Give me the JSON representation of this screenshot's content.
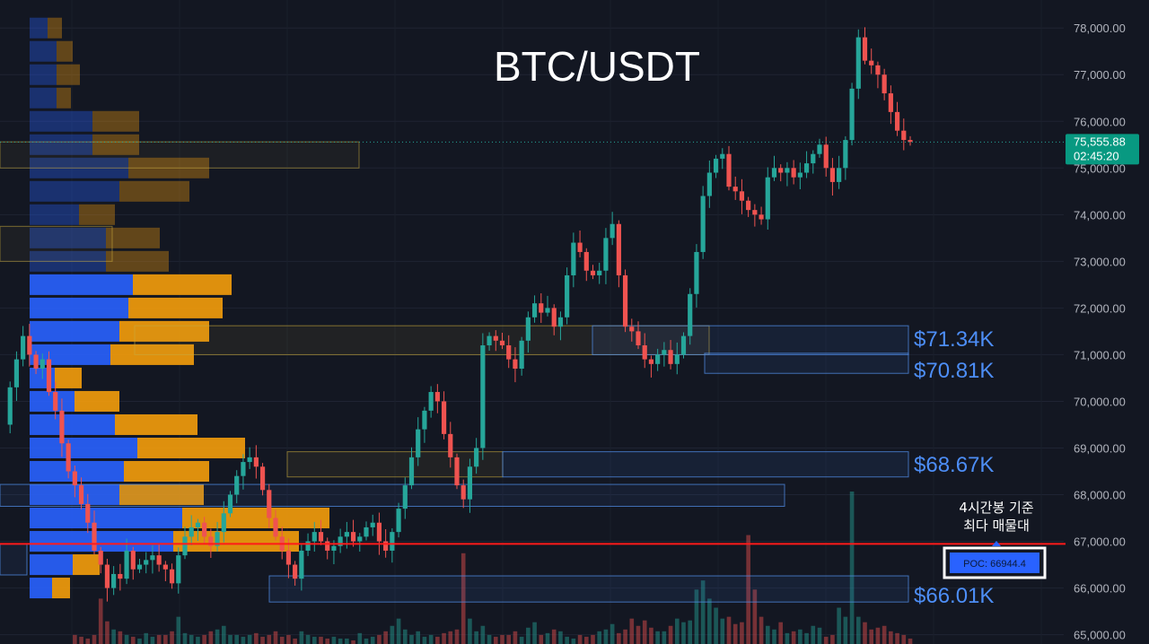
{
  "colors": {
    "background": "#131722",
    "up": "#26a69a",
    "down": "#ef5350",
    "vp_blue": "#2962ff",
    "vp_orange": "#f59d0b",
    "poc_line": "#ff1a1a",
    "level_text": "#4d8ef7",
    "axis_text": "#b2b5be",
    "price_badge": "#089981"
  },
  "chart_data": {
    "type": "candlestick",
    "title": "BTC/USDT",
    "ylim": [
      64800,
      78600
    ],
    "y_ticks": [
      {
        "value": 65000,
        "label": "65,000.00"
      },
      {
        "value": 66000,
        "label": "66,000.00"
      },
      {
        "value": 67000,
        "label": "67,000.00"
      },
      {
        "value": 68000,
        "label": "68,000.00"
      },
      {
        "value": 69000,
        "label": "69,000.00"
      },
      {
        "value": 70000,
        "label": "70,000.00"
      },
      {
        "value": 71000,
        "label": "71,000.00"
      },
      {
        "value": 72000,
        "label": "72,000.00"
      },
      {
        "value": 73000,
        "label": "73,000.00"
      },
      {
        "value": 74000,
        "label": "74,000.00"
      },
      {
        "value": 75000,
        "label": "75,000.00"
      },
      {
        "value": 76000,
        "label": "76,000.00"
      },
      {
        "value": 77000,
        "label": "77,000.00"
      },
      {
        "value": 78000,
        "label": "78,000.00"
      }
    ],
    "current_price": {
      "value": 75555.88,
      "label": "75,555.88",
      "countdown": "02:45:20"
    },
    "poc": {
      "value": 66944.4,
      "label": "POC: 66944.4",
      "annotation_line1": "4시간봉 기준",
      "annotation_line2": "최다 매물대"
    },
    "levels": [
      {
        "value": 71340,
        "label": "$71.34K",
        "zone_low": 71000,
        "zone_high": 71620
      },
      {
        "value": 70810,
        "label": "$70.81K",
        "zone_low": 70600,
        "zone_high": 71030
      },
      {
        "value": 68670,
        "label": "$68.67K",
        "zone_low": 68380,
        "zone_high": 68920
      },
      {
        "value": 66010,
        "label": "$66.01K",
        "zone_low": 65700,
        "zone_high": 66260
      }
    ],
    "prices": [
      69500,
      70300,
      70900,
      71400,
      71000,
      70700,
      70900,
      70200,
      69800,
      69100,
      68500,
      68200,
      67800,
      67400,
      66800,
      66500,
      66000,
      66300,
      66200,
      66800,
      66400,
      66500,
      66600,
      66700,
      66500,
      66400,
      66100,
      66700,
      67100,
      67300,
      67400,
      67100,
      66900,
      67200,
      67600,
      68000,
      68400,
      68700,
      68800,
      68600,
      68100,
      67500,
      67100,
      66800,
      66500,
      66200,
      66800,
      67000,
      67200,
      67000,
      66800,
      66900,
      67100,
      67200,
      67000,
      67100,
      67300,
      67400,
      67000,
      66800,
      67200,
      67700,
      68200,
      68800,
      69400,
      69800,
      70200,
      70000,
      69300,
      68800,
      68200,
      67900,
      68600,
      69000,
      71200,
      71400,
      71300,
      71200,
      70900,
      70700,
      71300,
      71800,
      72100,
      71900,
      72000,
      71600,
      71800,
      72700,
      73400,
      73200,
      72800,
      72700,
      72800,
      73500,
      73800,
      72700,
      71600,
      71500,
      71200,
      70900,
      70800,
      71000,
      71100,
      70800,
      71000,
      71400,
      72300,
      73200,
      74400,
      74900,
      75200,
      75300,
      74600,
      74500,
      74300,
      74100,
      74000,
      73900,
      74800,
      75000,
      74900,
      75000,
      74800,
      74900,
      75100,
      75300,
      75500,
      75000,
      74700,
      75000,
      75600,
      76700,
      77800,
      77300,
      77200,
      77000,
      76600,
      76200,
      75800,
      75600,
      75560
    ],
    "volume_profile": [
      {
        "price": 78000,
        "buy": 20,
        "sell": 16
      },
      {
        "price": 77500,
        "buy": 30,
        "sell": 18
      },
      {
        "price": 77000,
        "buy": 30,
        "sell": 26
      },
      {
        "price": 76500,
        "buy": 30,
        "sell": 16
      },
      {
        "price": 76000,
        "buy": 70,
        "sell": 52
      },
      {
        "price": 75500,
        "buy": 70,
        "sell": 52
      },
      {
        "price": 75000,
        "buy": 110,
        "sell": 90
      },
      {
        "price": 74500,
        "buy": 100,
        "sell": 78
      },
      {
        "price": 74000,
        "buy": 55,
        "sell": 40
      },
      {
        "price": 73500,
        "buy": 85,
        "sell": 60
      },
      {
        "price": 73000,
        "buy": 85,
        "sell": 70
      },
      {
        "price": 72500,
        "buy": 115,
        "sell": 110
      },
      {
        "price": 72000,
        "buy": 110,
        "sell": 105
      },
      {
        "price": 71500,
        "buy": 100,
        "sell": 100
      },
      {
        "price": 71000,
        "buy": 90,
        "sell": 93
      },
      {
        "price": 70500,
        "buy": 28,
        "sell": 30
      },
      {
        "price": 70000,
        "buy": 50,
        "sell": 50
      },
      {
        "price": 69500,
        "buy": 95,
        "sell": 92
      },
      {
        "price": 69000,
        "buy": 120,
        "sell": 120
      },
      {
        "price": 68500,
        "buy": 105,
        "sell": 95
      },
      {
        "price": 68000,
        "buy": 100,
        "sell": 94
      },
      {
        "price": 67500,
        "buy": 170,
        "sell": 164
      },
      {
        "price": 67000,
        "buy": 160,
        "sell": 140
      },
      {
        "price": 66500,
        "buy": 48,
        "sell": 30
      },
      {
        "price": 66000,
        "buy": 25,
        "sell": 20
      }
    ],
    "volumes": [
      0,
      0,
      0,
      0,
      0,
      0,
      0,
      0,
      0,
      0,
      0,
      10,
      8,
      6,
      10,
      50,
      25,
      16,
      14,
      10,
      8,
      6,
      12,
      8,
      10,
      10,
      14,
      30,
      12,
      10,
      8,
      10,
      14,
      16,
      20,
      10,
      10,
      8,
      10,
      12,
      8,
      10,
      14,
      8,
      10,
      6,
      14,
      10,
      8,
      8,
      6,
      8,
      6,
      6,
      4,
      12,
      6,
      8,
      10,
      14,
      20,
      28,
      16,
      10,
      14,
      8,
      10,
      8,
      12,
      14,
      16,
      100,
      28,
      14,
      20,
      10,
      8,
      10,
      10,
      14,
      8,
      18,
      24,
      10,
      12,
      16,
      14,
      8,
      6,
      10,
      8,
      10,
      14,
      16,
      22,
      12,
      16,
      28,
      20,
      26,
      18,
      14,
      14,
      20,
      28,
      24,
      26,
      60,
      70,
      50,
      40,
      28,
      30,
      22,
      24,
      120,
      60,
      30,
      20,
      16,
      24,
      12,
      14,
      16,
      12,
      20,
      18,
      8,
      10,
      40,
      30,
      168,
      30,
      24,
      16,
      18,
      20,
      14,
      12,
      10,
      6
    ],
    "heavy_candle_step": 3
  }
}
